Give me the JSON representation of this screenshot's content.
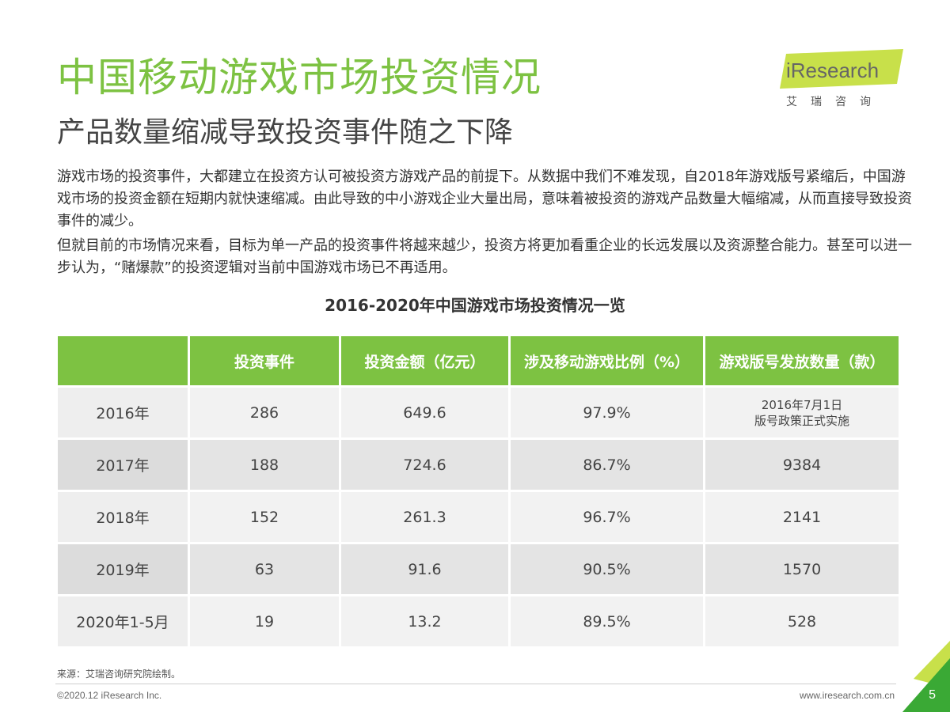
{
  "header": {
    "title": "中国移动游戏市场投资情况",
    "subtitle": "产品数量缩减导致投资事件随之下降"
  },
  "logo": {
    "brand": "iResearch",
    "cn": "艾瑞咨询"
  },
  "body": {
    "paragraph1": "游戏市场的投资事件，大都建立在投资方认可被投资方游戏产品的前提下。从数据中我们不难发现，自2018年游戏版号紧缩后，中国游戏市场的投资金额在短期内就快速缩减。由此导致的中小游戏企业大量出局，意味着被投资的游戏产品数量大幅缩减，从而直接导致投资事件的减少。",
    "paragraph2": "但就目前的市场情况来看，目标为单一产品的投资事件将越来越少，投资方将更加看重企业的长远发展以及资源整合能力。甚至可以进一步认为，“赌爆款”的投资逻辑对当前中国游戏市场已不再适用。"
  },
  "table": {
    "title": "2016-2020年中国游戏市场投资情况一览",
    "headers": [
      "",
      "投资事件",
      "投资金额（亿元）",
      "涉及移动游戏比例（%）",
      "游戏版号发放数量（款）"
    ],
    "rows": [
      [
        "2016年",
        "286",
        "649.6",
        "97.9%",
        "2016年7月1日\n版号政策正式实施"
      ],
      [
        "2017年",
        "188",
        "724.6",
        "86.7%",
        "9384"
      ],
      [
        "2018年",
        "152",
        "261.3",
        "96.7%",
        "2141"
      ],
      [
        "2019年",
        "63",
        "91.6",
        "90.5%",
        "1570"
      ],
      [
        "2020年1-5月",
        "19",
        "13.2",
        "89.5%",
        "528"
      ]
    ]
  },
  "footer": {
    "source": "来源：艾瑞咨询研究院绘制。",
    "copyright": "©2020.12 iResearch Inc.",
    "website": "www.iresearch.com.cn",
    "page_number": "5"
  },
  "colors": {
    "accent_green": "#7dc242",
    "corner_green_light": "#c8e04a",
    "corner_green_dark": "#3aa935"
  }
}
